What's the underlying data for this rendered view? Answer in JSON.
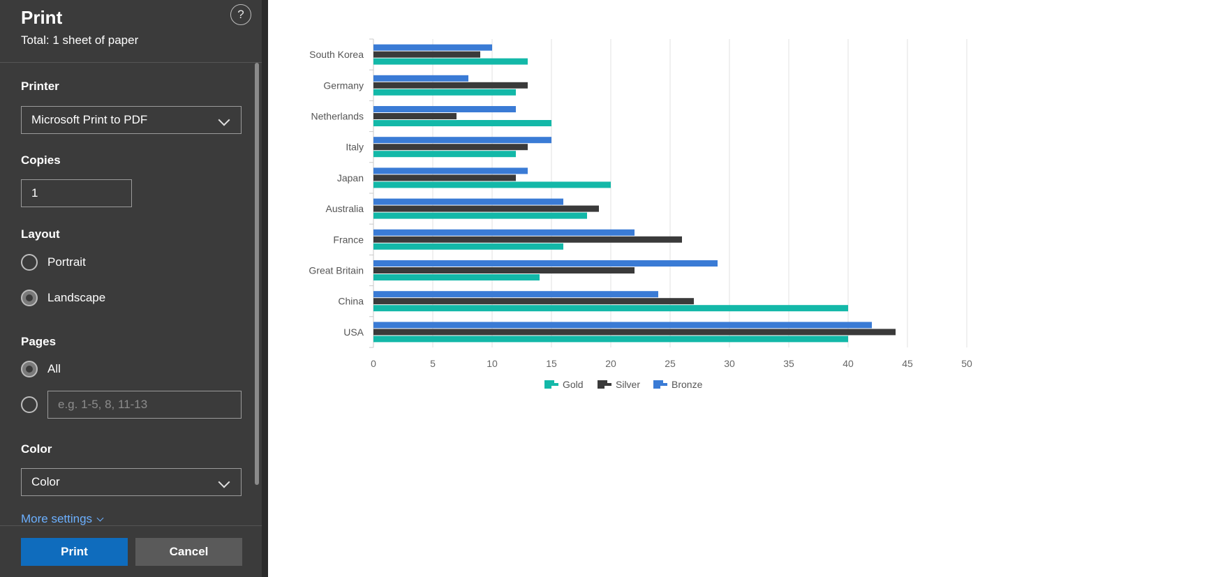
{
  "dialog": {
    "title": "Print",
    "subtitle": "Total: 1 sheet of paper",
    "help_glyph": "?",
    "printer_label": "Printer",
    "printer_value": "Microsoft Print to PDF",
    "copies_label": "Copies",
    "copies_value": "1",
    "layout_label": "Layout",
    "layout_options": [
      "Portrait",
      "Landscape"
    ],
    "layout_selected": "Landscape",
    "pages_label": "Pages",
    "pages_all": "All",
    "pages_placeholder": "e.g. 1-5, 8, 11-13",
    "pages_selected": "All",
    "color_label": "Color",
    "color_value": "Color",
    "more_settings": "More settings",
    "print_button": "Print",
    "cancel_button": "Cancel"
  },
  "colors": {
    "gold": "#13b8a8",
    "silver": "#3a3a3a",
    "bronze": "#3a7bd5",
    "sidebar": "#3b3b3b",
    "primary": "#0f6cbd"
  },
  "chart_data": {
    "type": "bar",
    "orientation": "horizontal",
    "categories": [
      "USA",
      "China",
      "Great Britain",
      "France",
      "Australia",
      "Japan",
      "Italy",
      "Netherlands",
      "Germany",
      "South Korea"
    ],
    "series": [
      {
        "name": "Gold",
        "values": [
          40,
          40,
          14,
          16,
          18,
          20,
          12,
          15,
          12,
          13
        ]
      },
      {
        "name": "Silver",
        "values": [
          44,
          27,
          22,
          26,
          19,
          12,
          13,
          7,
          13,
          9
        ]
      },
      {
        "name": "Bronze",
        "values": [
          42,
          24,
          29,
          22,
          16,
          13,
          15,
          12,
          8,
          10
        ]
      }
    ],
    "xlim": [
      0,
      50
    ],
    "xticks": [
      "0",
      "5",
      "10",
      "15",
      "20",
      "25",
      "30",
      "35",
      "40",
      "45",
      "50"
    ],
    "grid": true,
    "legend": "bottom"
  }
}
